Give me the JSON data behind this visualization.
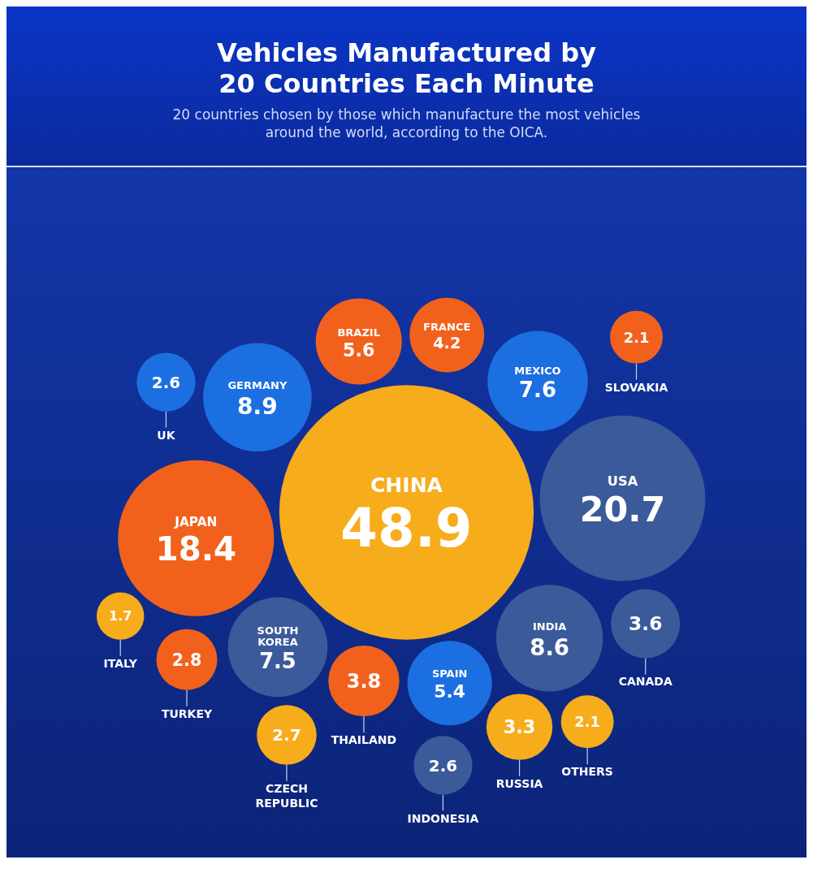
{
  "chart_data": {
    "type": "other",
    "title": "Vehicles Manufactured by 20 Countries Each Minute",
    "subtitle": "20 countries chosen by those which manufacture the most vehicles around the world, according to the OICA.",
    "categories": [
      "CHINA",
      "USA",
      "JAPAN",
      "GERMANY",
      "INDIA",
      "MEXICO",
      "SOUTH KOREA",
      "BRAZIL",
      "SPAIN",
      "FRANCE",
      "THAILAND",
      "CANADA",
      "RUSSIA",
      "TURKEY",
      "CZECH REPUBLIC",
      "UK",
      "INDONESIA",
      "SLOVAKIA",
      "OTHERS",
      "ITALY"
    ],
    "values": [
      48.9,
      20.7,
      18.4,
      8.9,
      8.6,
      7.6,
      7.5,
      5.6,
      5.4,
      4.2,
      3.8,
      3.6,
      3.3,
      2.8,
      2.7,
      2.6,
      2.6,
      2.1,
      2.1,
      1.7
    ],
    "colors": [
      "#f7ac1b",
      "#3b5a9a",
      "#f2611c",
      "#1c6fe0",
      "#3b5a9a",
      "#1c6fe0",
      "#3b5a9a",
      "#f2611c",
      "#1c6fe0",
      "#f2611c",
      "#f2611c",
      "#3b5a9a",
      "#f7ac1b",
      "#f2611c",
      "#f7ac1b",
      "#1c6fe0",
      "#3b5a9a",
      "#f2611c",
      "#f7ac1b",
      "#f7ac1b"
    ],
    "data_labels": true
  }
}
